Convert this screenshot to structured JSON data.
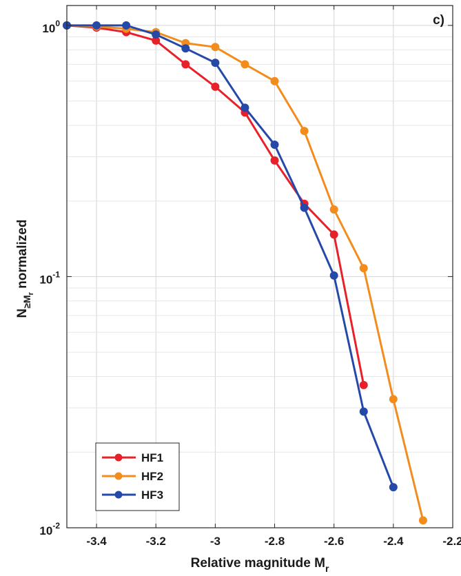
{
  "chart_data": {
    "type": "line",
    "panel_label": "c)",
    "xlabel": "Relative magnitude M",
    "xlabel_sub": "r",
    "ylabel_main": "N",
    "ylabel_sub": "≥M",
    "ylabel_subsub": "r",
    "ylabel_tail": " normalized",
    "xlim": [
      -3.5,
      -2.2
    ],
    "ylim": [
      0.01,
      1.2
    ],
    "yscale": "log",
    "grid": true,
    "legend_position": "bottom-left",
    "x_ticks": [
      -3.4,
      -3.2,
      -3.0,
      -2.8,
      -2.6,
      -2.4,
      -2.2
    ],
    "x_tick_labels": [
      "-3.4",
      "-3.2",
      "-3",
      "-2.8",
      "-2.6",
      "-2.4",
      "-2.2"
    ],
    "y_ticks": [
      {
        "value": 1,
        "base": "10",
        "exp": "0"
      },
      {
        "value": 0.1,
        "base": "10",
        "exp": "-1"
      },
      {
        "value": 0.01,
        "base": "10",
        "exp": "-2"
      }
    ],
    "series": [
      {
        "name": "HF1",
        "color": "#e8202a",
        "x": [
          -3.5,
          -3.4,
          -3.3,
          -3.2,
          -3.1,
          -3.0,
          -2.9,
          -2.8,
          -2.7,
          -2.6,
          -2.5
        ],
        "y": [
          1.0,
          0.98,
          0.94,
          0.87,
          0.7,
          0.57,
          0.45,
          0.29,
          0.195,
          0.147,
          0.037
        ]
      },
      {
        "name": "HF2",
        "color": "#f28c1c",
        "x": [
          -3.5,
          -3.4,
          -3.3,
          -3.2,
          -3.1,
          -3.0,
          -2.9,
          -2.8,
          -2.7,
          -2.6,
          -2.5,
          -2.4,
          -2.3
        ],
        "y": [
          1.0,
          0.99,
          0.97,
          0.94,
          0.85,
          0.82,
          0.7,
          0.6,
          0.38,
          0.185,
          0.108,
          0.0325,
          0.0107
        ]
      },
      {
        "name": "HF3",
        "color": "#2549a8",
        "x": [
          -3.5,
          -3.4,
          -3.3,
          -3.2,
          -3.1,
          -3.0,
          -2.9,
          -2.8,
          -2.7,
          -2.6,
          -2.5,
          -2.4
        ],
        "y": [
          1.0,
          1.0,
          1.0,
          0.92,
          0.81,
          0.71,
          0.47,
          0.335,
          0.188,
          0.101,
          0.029,
          0.0145
        ]
      }
    ]
  }
}
